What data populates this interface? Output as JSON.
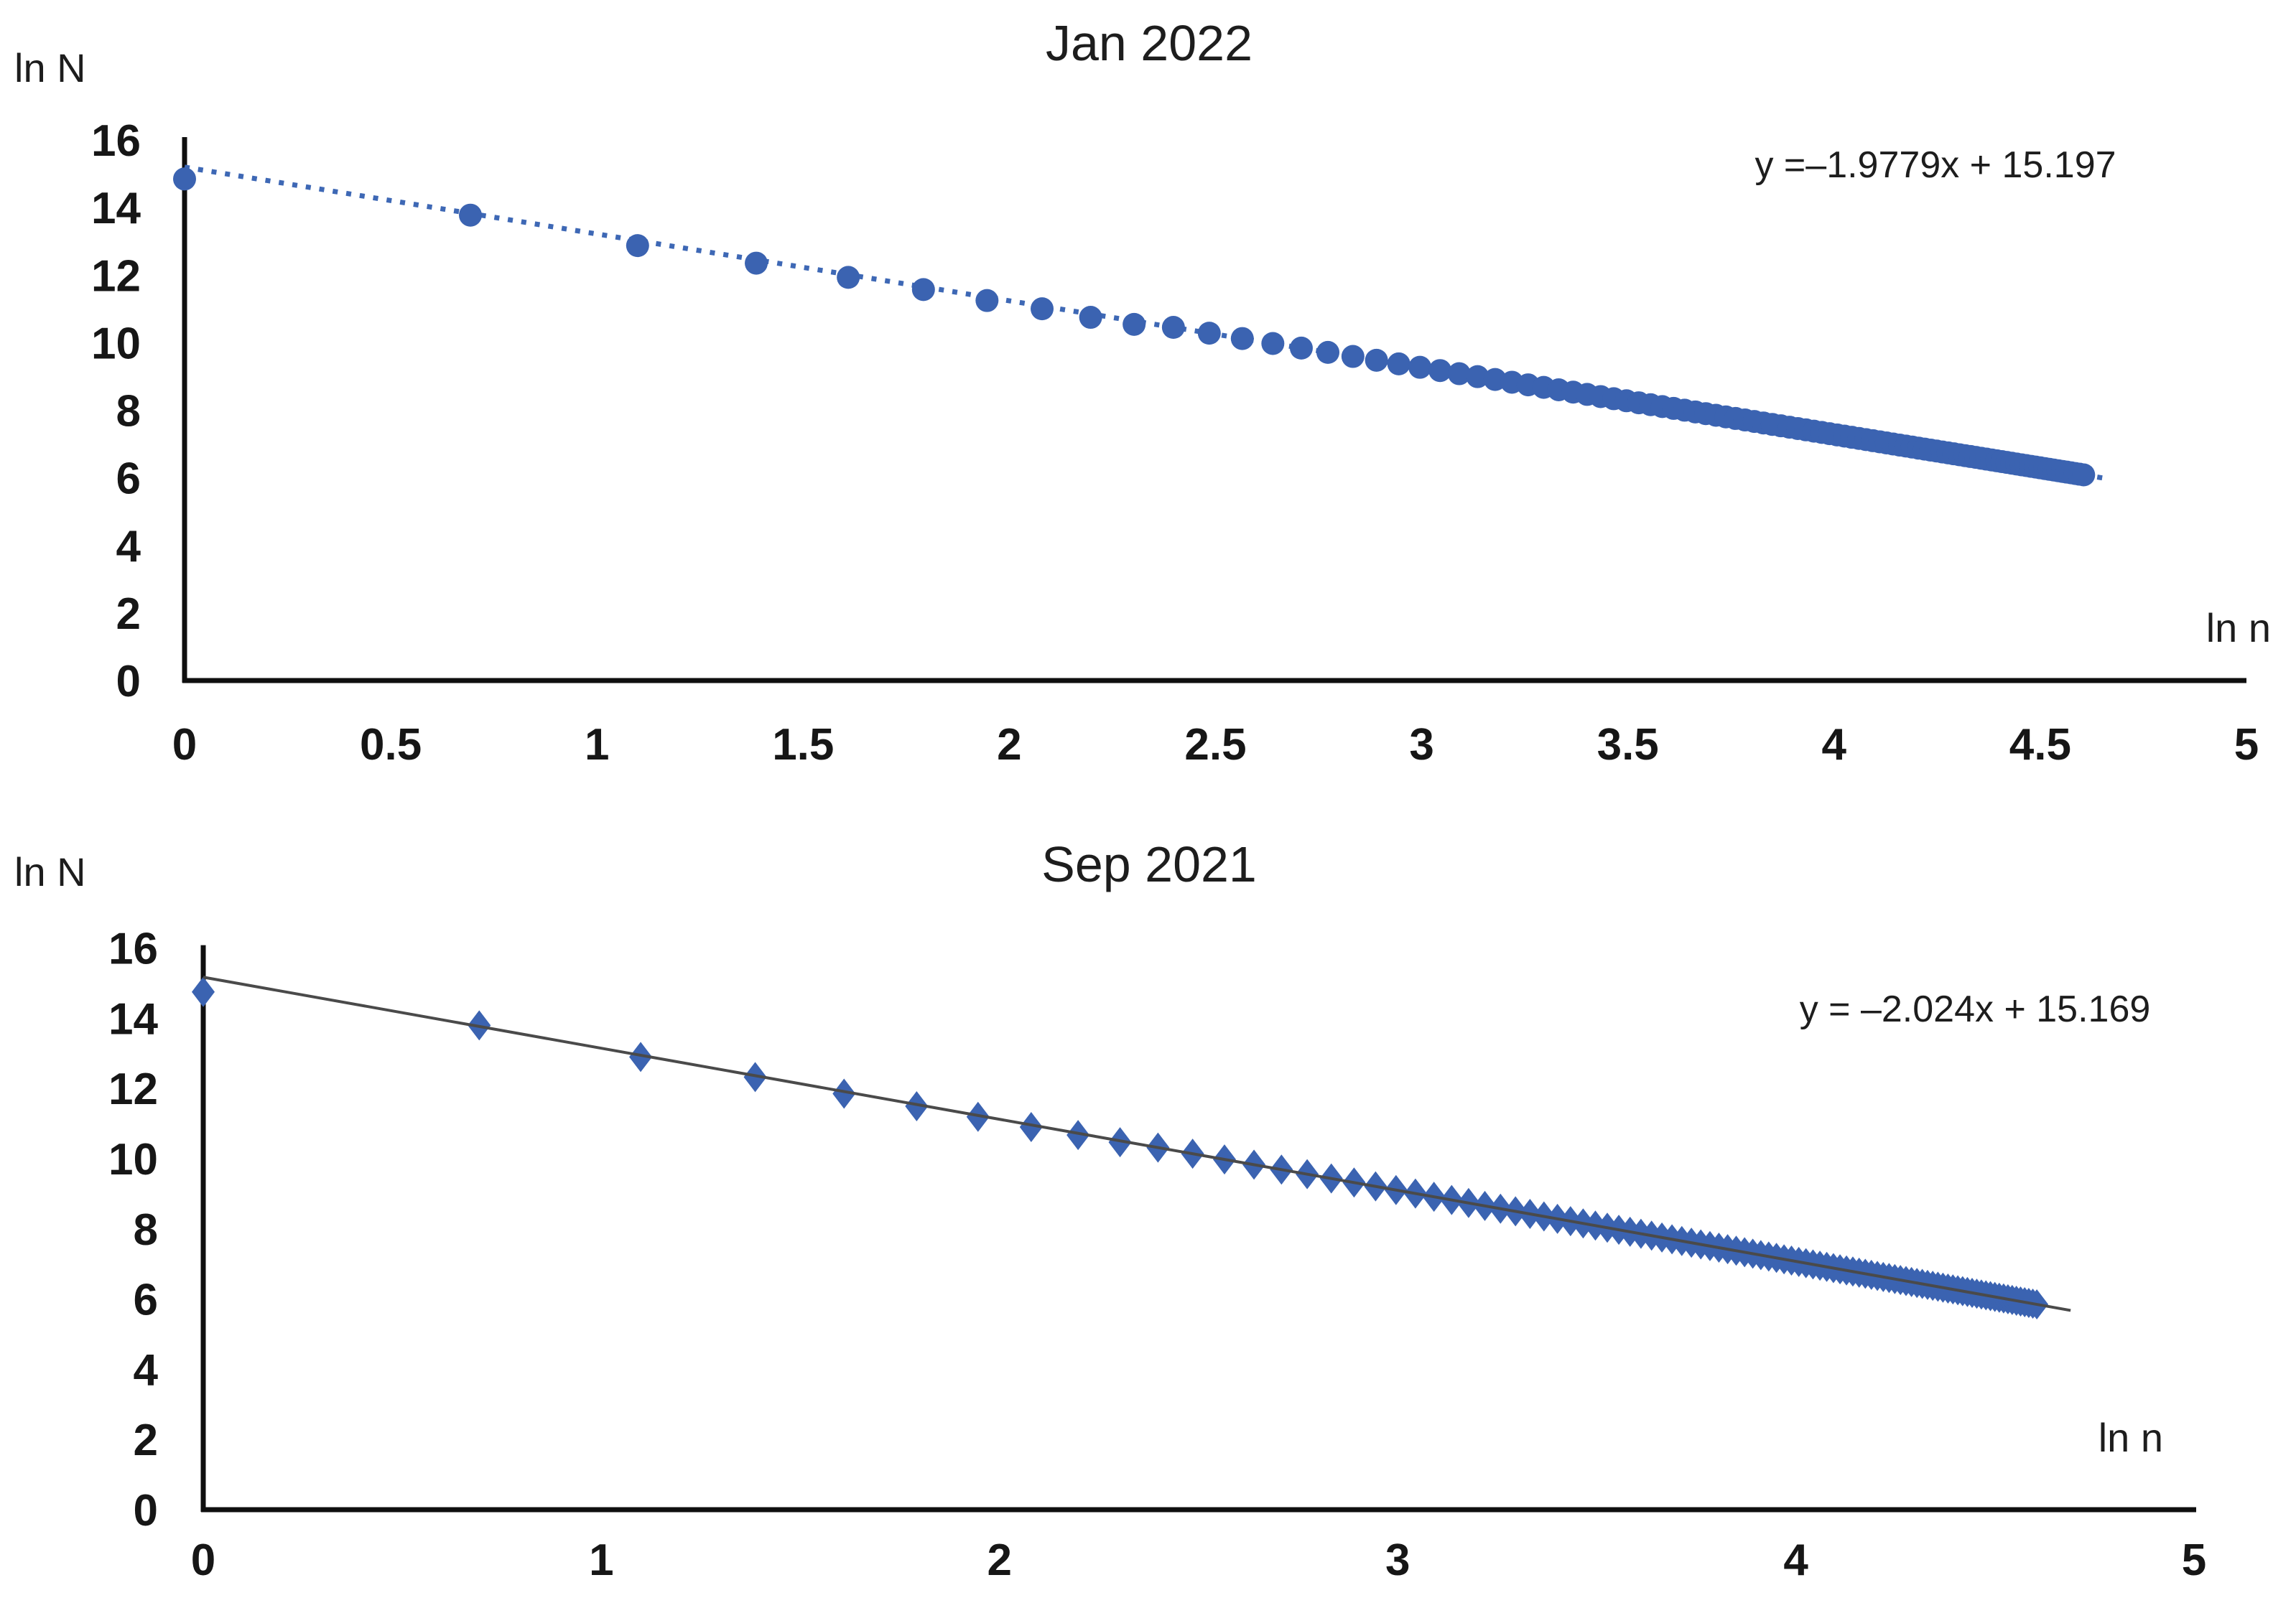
{
  "page": {
    "background": "#ffffff",
    "text_color": "#1d1d1d",
    "axis_color": "#0f0f0f"
  },
  "charts": [
    {
      "title": "Jan 2022",
      "y_axis_label": "ln N",
      "x_axis_label": "ln n",
      "equation": "y =–1.9779x + 15.197",
      "chart_data": {
        "type": "scatter",
        "description": "Zipf plot: natural log of word frequency (ln N) versus natural log of rank (ln n), Jan 2022",
        "x_rule": "x = ln(rank) for rank = 1..100",
        "rank_range": [
          1,
          100
        ],
        "fit": {
          "slope": -1.9779,
          "intercept": 15.197
        },
        "trendline": {
          "style": "dotted",
          "color": "#3E68B5",
          "width": 7,
          "dash": "7 12",
          "x_range": [
            0,
            4.66
          ],
          "equation_label": "y =–1.9779x + 15.197"
        },
        "marker": {
          "shape": "circle",
          "color": "#3B63B1",
          "radius": 16
        },
        "point_deviation_from_fit": [
          -0.35,
          -0.05,
          -0.15,
          -0.1,
          -0.08,
          -0.08,
          -0.1,
          -0.08,
          -0.1,
          -0.1
        ],
        "sample_points": [
          [
            0,
            14.85
          ],
          [
            0.69,
            13.78
          ],
          [
            1.1,
            12.87
          ],
          [
            1.39,
            12.35
          ],
          [
            1.61,
            11.93
          ],
          [
            1.79,
            11.57
          ],
          [
            1.95,
            11.24
          ],
          [
            2.08,
            11.01
          ],
          [
            2.2,
            10.75
          ],
          [
            2.3,
            10.55
          ]
        ],
        "xlim": [
          0,
          5
        ],
        "ylim": [
          0,
          16
        ],
        "x_tick_values": [
          0,
          0.5,
          1,
          1.5,
          2,
          2.5,
          3,
          3.5,
          4,
          4.5,
          5
        ],
        "x_tick_labels": [
          "0",
          "0.5",
          "1",
          "1.5",
          "2",
          "2.5",
          "3",
          "3.5",
          "4",
          "4.5",
          "5"
        ],
        "y_tick_values": [
          0,
          2,
          4,
          6,
          8,
          10,
          12,
          14,
          16
        ],
        "y_tick_labels": [
          "0",
          "2",
          "4",
          "6",
          "8",
          "10",
          "12",
          "14",
          "16"
        ],
        "grid": false,
        "legend": "none"
      }
    },
    {
      "title": "Sep 2021",
      "y_axis_label": "ln N",
      "x_axis_label": "ln n",
      "equation": "y = –2.024x + 15.169",
      "chart_data": {
        "type": "scatter",
        "description": "Zipf plot: natural log of word frequency (ln N) versus natural log of rank (ln n), Sep 2021",
        "x_rule": "x = ln(rank) for rank = 1..100",
        "rank_range": [
          1,
          100
        ],
        "fit": {
          "slope": -2.024,
          "intercept": 15.169
        },
        "trendline": {
          "style": "solid",
          "color": "#4A4A4A",
          "width": 4,
          "dash": "",
          "x_range": [
            0,
            4.69
          ],
          "equation_label": "y = –2.024x + 15.169"
        },
        "marker": {
          "shape": "diamond",
          "color": "#3B63B1",
          "half_width": 16,
          "half_height": 21
        },
        "point_deviation_from_fit": [
          -0.42,
          0.03,
          -0.05,
          -0.04,
          -0.06,
          -0.05,
          -0.04,
          -0.06,
          -0.05,
          -0.04
        ],
        "sample_points": [
          [
            0,
            14.75
          ],
          [
            0.69,
            13.8
          ],
          [
            1.1,
            12.89
          ],
          [
            1.39,
            12.25
          ],
          [
            1.61,
            11.85
          ],
          [
            1.79,
            11.53
          ],
          [
            1.95,
            11.18
          ],
          [
            2.08,
            10.96
          ],
          [
            2.2,
            10.71
          ],
          [
            2.3,
            10.51
          ]
        ],
        "xlim": [
          0,
          5
        ],
        "ylim": [
          0,
          16
        ],
        "x_tick_values": [
          0,
          1,
          2,
          3,
          4,
          5
        ],
        "x_tick_labels": [
          "0",
          "1",
          "2",
          "3",
          "4",
          "5"
        ],
        "y_tick_values": [
          0,
          2,
          4,
          6,
          8,
          10,
          12,
          14,
          16
        ],
        "y_tick_labels": [
          "0",
          "2",
          "4",
          "6",
          "8",
          "10",
          "12",
          "14",
          "16"
        ],
        "grid": false,
        "legend": "none"
      }
    }
  ]
}
